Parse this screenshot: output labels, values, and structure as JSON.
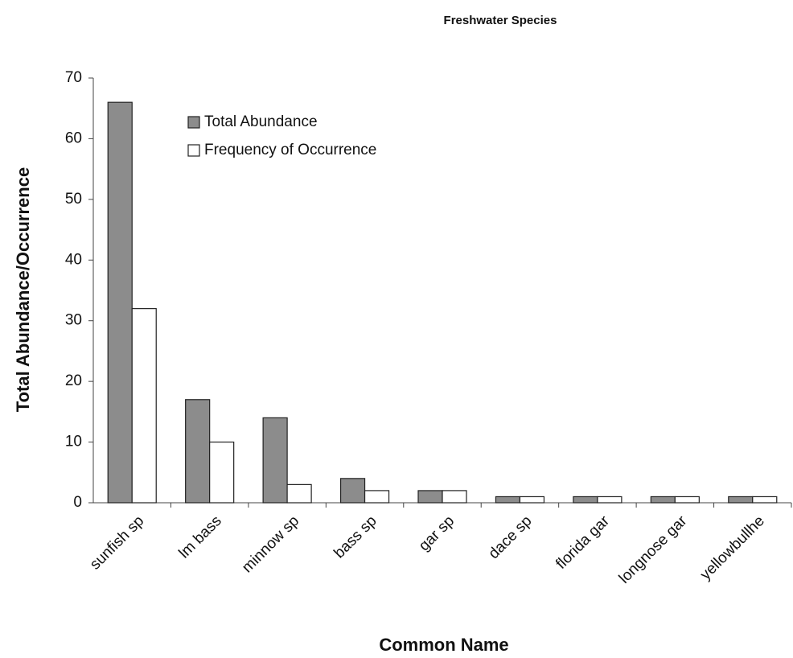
{
  "chart_data": {
    "type": "bar",
    "title": "Freshwater Species",
    "x_label": "Common Name",
    "y_label": "Total Abundance/Occurrence",
    "categories": [
      "sunfish sp",
      "lm bass",
      "minnow sp",
      "bass sp",
      "gar sp",
      "dace sp",
      "florida gar",
      "longnose gar",
      "yellowbullhe"
    ],
    "series": [
      {
        "name": "Total Abundance",
        "color": "#8c8c8c",
        "values": [
          66,
          17,
          14,
          4,
          2,
          1,
          1,
          1,
          1
        ]
      },
      {
        "name": "Frequency of Occurrence",
        "color": "#ffffff",
        "values": [
          32,
          10,
          3,
          2,
          2,
          1,
          1,
          1,
          1
        ]
      }
    ],
    "ylim": [
      0,
      70
    ],
    "yticks": [
      0,
      10,
      20,
      30,
      40,
      50,
      60,
      70
    ],
    "grid": false,
    "legend": "upper-left"
  }
}
